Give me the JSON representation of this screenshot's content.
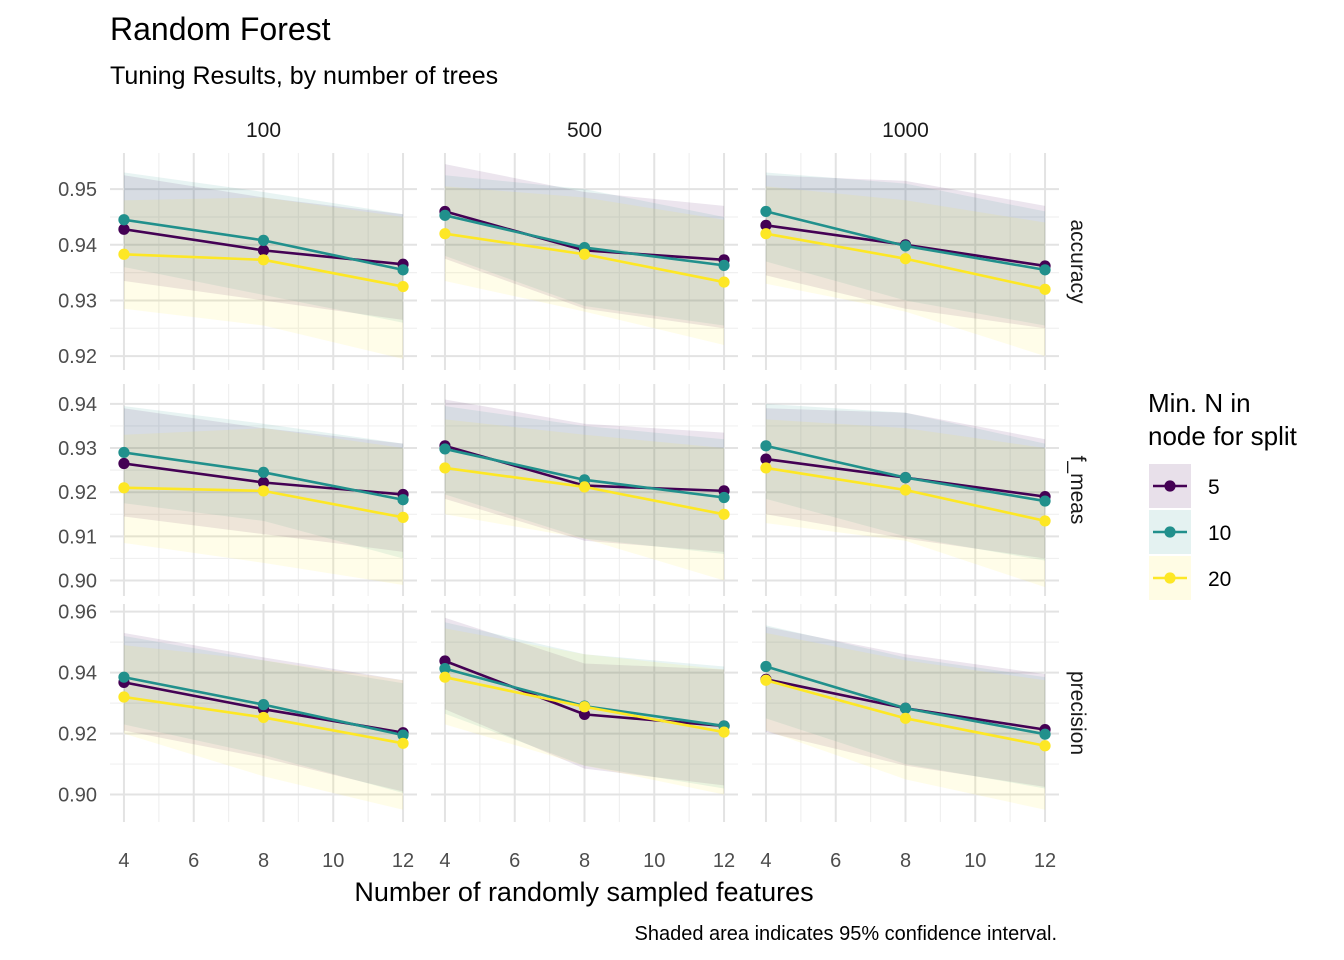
{
  "chart_data": {
    "type": "line",
    "title": "Random Forest",
    "subtitle": "Tuning Results, by number of trees",
    "xlabel": "Number of randomly sampled features",
    "caption": "Shaded area indicates 95% confidence interval.",
    "x": [
      4,
      8,
      12
    ],
    "x_ticks": [
      4,
      6,
      8,
      10,
      12
    ],
    "xlim": [
      3.6,
      12.4
    ],
    "grid": true,
    "legend": {
      "title_lines": [
        "Min. N in",
        "node for split"
      ],
      "position": "right",
      "entries": [
        "5",
        "10",
        "20"
      ]
    },
    "colors": {
      "5": "#440154",
      "10": "#21908C",
      "20": "#FDE725"
    },
    "columns": [
      "100",
      "500",
      "1000"
    ],
    "rows": [
      {
        "metric": "accuracy",
        "ylim": [
          0.9175,
          0.9565
        ],
        "yticks": [
          0.92,
          0.93,
          0.94,
          0.95
        ],
        "tick_labels": [
          "0.92",
          "0.93",
          "0.94",
          "0.95"
        ]
      },
      {
        "metric": "f_meas",
        "ylim": [
          0.8965,
          0.9445
        ],
        "yticks": [
          0.9,
          0.91,
          0.92,
          0.93,
          0.94
        ],
        "tick_labels": [
          "0.90",
          "0.91",
          "0.92",
          "0.93",
          "0.94"
        ]
      },
      {
        "metric": "precision",
        "ylim": [
          0.891,
          0.9625
        ],
        "yticks": [
          0.9,
          0.92,
          0.94,
          0.96
        ],
        "tick_labels": [
          "0.90",
          "0.92",
          "0.94",
          "0.96"
        ]
      }
    ],
    "panels": [
      {
        "row": "accuracy",
        "col": "100",
        "series": [
          {
            "name": "5",
            "mean": [
              0.9428,
              0.939,
              0.9365
            ],
            "lower": [
              0.9335,
              0.93,
              0.9265
            ],
            "upper": [
              0.9525,
              0.9485,
              0.9455
            ]
          },
          {
            "name": "10",
            "mean": [
              0.9445,
              0.9408,
              0.9355
            ],
            "lower": [
              0.936,
              0.931,
              0.926
            ],
            "upper": [
              0.953,
              0.9495,
              0.9455
            ]
          },
          {
            "name": "20",
            "mean": [
              0.9383,
              0.9373,
              0.9325
            ],
            "lower": [
              0.9285,
              0.9255,
              0.9195
            ],
            "upper": [
              0.948,
              0.9485,
              0.945
            ]
          }
        ]
      },
      {
        "row": "accuracy",
        "col": "500",
        "series": [
          {
            "name": "5",
            "mean": [
              0.946,
              0.939,
              0.9373
            ],
            "lower": [
              0.9375,
              0.9285,
              0.925
            ],
            "upper": [
              0.9545,
              0.9495,
              0.947
            ]
          },
          {
            "name": "10",
            "mean": [
              0.9453,
              0.9395,
              0.9363
            ],
            "lower": [
              0.938,
              0.929,
              0.9255
            ],
            "upper": [
              0.9525,
              0.95,
              0.945
            ]
          },
          {
            "name": "20",
            "mean": [
              0.942,
              0.9383,
              0.9333
            ],
            "lower": [
              0.9335,
              0.928,
              0.922
            ],
            "upper": [
              0.9505,
              0.9485,
              0.9445
            ]
          }
        ]
      },
      {
        "row": "accuracy",
        "col": "1000",
        "series": [
          {
            "name": "5",
            "mean": [
              0.9435,
              0.94,
              0.9362
            ],
            "lower": [
              0.9345,
              0.9285,
              0.925
            ],
            "upper": [
              0.9525,
              0.9515,
              0.947
            ]
          },
          {
            "name": "10",
            "mean": [
              0.946,
              0.9398,
              0.9355
            ],
            "lower": [
              0.937,
              0.93,
              0.9255
            ],
            "upper": [
              0.953,
              0.951,
              0.946
            ]
          },
          {
            "name": "20",
            "mean": [
              0.942,
              0.9375,
              0.932
            ],
            "lower": [
              0.933,
              0.928,
              0.92
            ],
            "upper": [
              0.9505,
              0.948,
              0.944
            ]
          }
        ]
      },
      {
        "row": "f_meas",
        "col": "100",
        "series": [
          {
            "name": "5",
            "mean": [
              0.9265,
              0.9222,
              0.9195
            ],
            "lower": [
              0.9145,
              0.9105,
              0.9065
            ],
            "upper": [
              0.939,
              0.9345,
              0.931
            ]
          },
          {
            "name": "10",
            "mean": [
              0.929,
              0.9245,
              0.9183
            ],
            "lower": [
              0.9175,
              0.9135,
              0.905
            ],
            "upper": [
              0.9395,
              0.9355,
              0.931
            ]
          },
          {
            "name": "20",
            "mean": [
              0.921,
              0.9203,
              0.9143
            ],
            "lower": [
              0.9085,
              0.904,
              0.899
            ],
            "upper": [
              0.933,
              0.9345,
              0.93
            ]
          }
        ]
      },
      {
        "row": "f_meas",
        "col": "500",
        "series": [
          {
            "name": "5",
            "mean": [
              0.9305,
              0.9215,
              0.9203
            ],
            "lower": [
              0.9185,
              0.909,
              0.9065
            ],
            "upper": [
              0.941,
              0.9355,
              0.9335
            ]
          },
          {
            "name": "10",
            "mean": [
              0.9298,
              0.9228,
              0.9188
            ],
            "lower": [
              0.9195,
              0.9095,
              0.906
            ],
            "upper": [
              0.9395,
              0.935,
              0.932
            ]
          },
          {
            "name": "20",
            "mean": [
              0.9255,
              0.9212,
              0.915
            ],
            "lower": [
              0.915,
              0.9095,
              0.9
            ],
            "upper": [
              0.9365,
              0.933,
              0.93
            ]
          }
        ]
      },
      {
        "row": "f_meas",
        "col": "1000",
        "series": [
          {
            "name": "5",
            "mean": [
              0.9275,
              0.9233,
              0.919
            ],
            "lower": [
              0.915,
              0.9095,
              0.905
            ],
            "upper": [
              0.939,
              0.938,
              0.932
            ]
          },
          {
            "name": "10",
            "mean": [
              0.9305,
              0.9233,
              0.918
            ],
            "lower": [
              0.9185,
              0.91,
              0.9045
            ],
            "upper": [
              0.94,
              0.938,
              0.931
            ]
          },
          {
            "name": "20",
            "mean": [
              0.9255,
              0.9205,
              0.9135
            ],
            "lower": [
              0.913,
              0.909,
              0.8985
            ],
            "upper": [
              0.9365,
              0.9345,
              0.93
            ]
          }
        ]
      },
      {
        "row": "precision",
        "col": "100",
        "series": [
          {
            "name": "5",
            "mean": [
              0.9368,
              0.928,
              0.9203
            ],
            "lower": [
              0.921,
              0.912,
              0.901
            ],
            "upper": [
              0.953,
              0.945,
              0.9375
            ]
          },
          {
            "name": "10",
            "mean": [
              0.9385,
              0.9295,
              0.9195
            ],
            "lower": [
              0.923,
              0.913,
              0.9005
            ],
            "upper": [
              0.952,
              0.944,
              0.9365
            ]
          },
          {
            "name": "20",
            "mean": [
              0.932,
              0.9253,
              0.9168
            ],
            "lower": [
              0.92,
              0.906,
              0.895
            ],
            "upper": [
              0.949,
              0.944,
              0.9375
            ]
          }
        ]
      },
      {
        "row": "precision",
        "col": "500",
        "series": [
          {
            "name": "5",
            "mean": [
              0.9438,
              0.9263,
              0.9225
            ],
            "lower": [
              0.928,
              0.9085,
              0.903
            ],
            "upper": [
              0.958,
              0.943,
              0.941
            ]
          },
          {
            "name": "10",
            "mean": [
              0.9413,
              0.929,
              0.9225
            ],
            "lower": [
              0.9265,
              0.9095,
              0.902
            ],
            "upper": [
              0.9565,
              0.946,
              0.942
            ]
          },
          {
            "name": "20",
            "mean": [
              0.9385,
              0.9288,
              0.9205
            ],
            "lower": [
              0.923,
              0.9095,
              0.9
            ],
            "upper": [
              0.9545,
              0.946,
              0.941
            ]
          }
        ]
      },
      {
        "row": "precision",
        "col": "1000",
        "series": [
          {
            "name": "5",
            "mean": [
              0.9378,
              0.9283,
              0.9213
            ],
            "lower": [
              0.9205,
              0.9095,
              0.9025
            ],
            "upper": [
              0.955,
              0.946,
              0.9395
            ]
          },
          {
            "name": "10",
            "mean": [
              0.942,
              0.9283,
              0.9198
            ],
            "lower": [
              0.925,
              0.91,
              0.902
            ],
            "upper": [
              0.9555,
              0.945,
              0.9385
            ]
          },
          {
            "name": "20",
            "mean": [
              0.9375,
              0.925,
              0.916
            ],
            "lower": [
              0.921,
              0.905,
              0.895
            ],
            "upper": [
              0.953,
              0.944,
              0.9375
            ]
          }
        ]
      }
    ]
  }
}
